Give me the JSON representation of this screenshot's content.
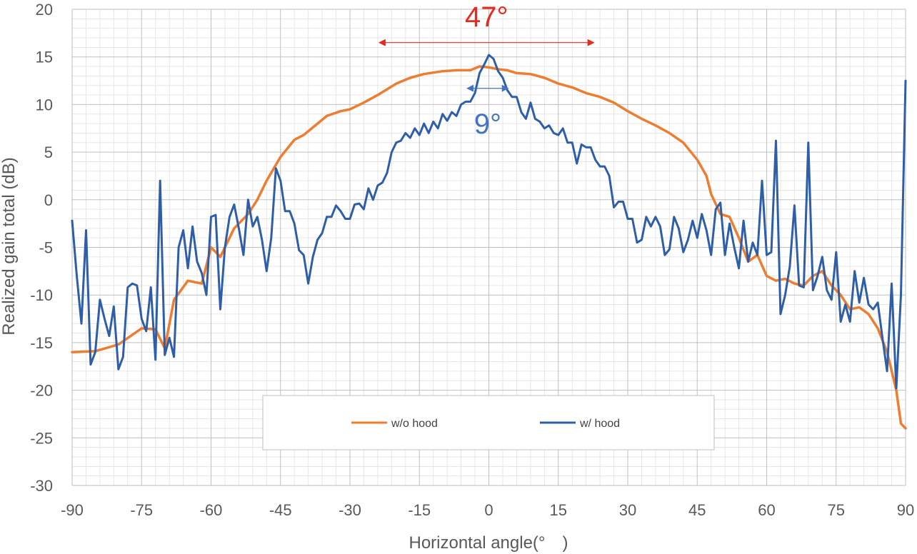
{
  "chart_data": {
    "type": "line",
    "title": "",
    "xlabel": "Horizontal angle(°　)",
    "ylabel": "Realized gain total (dB)",
    "xlim": [
      -90,
      90
    ],
    "ylim": [
      -30,
      20
    ],
    "xticks": [
      -90,
      -75,
      -60,
      -45,
      -30,
      -15,
      0,
      15,
      30,
      45,
      60,
      75,
      90
    ],
    "yticks": [
      -30,
      -25,
      -20,
      -15,
      -10,
      -5,
      0,
      5,
      10,
      15,
      20
    ],
    "xtick_labels": [
      "-90",
      "-75",
      "-60",
      "-45",
      "-30",
      "-15",
      "0",
      "15",
      "30",
      "45",
      "60",
      "75",
      "90"
    ],
    "ytick_labels": [
      "-30",
      "-25",
      "-20",
      "-15",
      "-10",
      "-5",
      "0",
      "5",
      "10",
      "15",
      "20"
    ],
    "grid": true,
    "legend_position": "bottom-center",
    "series": [
      {
        "name": "w/o hood",
        "color": "#ed7d31",
        "x": [
          -90,
          -85,
          -80,
          -75,
          -72,
          -70,
          -68,
          -65,
          -62,
          -60,
          -58,
          -55,
          -52,
          -50,
          -48,
          -45,
          -42,
          -40,
          -37,
          -35,
          -32,
          -30,
          -27,
          -24,
          -20,
          -17,
          -14,
          -10,
          -7,
          -4,
          -2,
          0,
          2,
          4,
          6,
          9,
          12,
          15,
          18,
          21,
          24,
          27,
          30,
          33,
          36,
          39,
          42,
          45,
          47,
          48,
          50,
          52,
          54,
          56,
          58,
          60,
          62,
          64,
          66,
          68,
          70,
          72,
          74,
          76,
          78,
          80,
          82,
          84,
          86,
          88,
          89,
          90
        ],
        "values": [
          -16,
          -15.9,
          -15.2,
          -13.5,
          -13.6,
          -15.6,
          -10.5,
          -8.5,
          -8.8,
          -5,
          -6,
          -3,
          -1.5,
          0,
          2,
          4.5,
          6.3,
          6.8,
          8,
          8.8,
          9.3,
          9.5,
          10.2,
          11,
          12.2,
          12.8,
          13.2,
          13.5,
          13.6,
          13.6,
          14,
          13.9,
          13.7,
          13.6,
          13.3,
          13.2,
          12.8,
          12.2,
          11.8,
          11.2,
          10.8,
          10.2,
          9.3,
          8.5,
          7.8,
          7,
          6,
          4.2,
          2.5,
          0.6,
          -1.5,
          -1.8,
          -4,
          -6.5,
          -5.8,
          -8,
          -8.5,
          -8.3,
          -8.8,
          -9,
          -8,
          -7.5,
          -9,
          -10,
          -11.5,
          -11.3,
          -12,
          -13.5,
          -16,
          -20,
          -23.5,
          -24
        ]
      },
      {
        "name": "w/ hood",
        "color": "#2e5ea8",
        "x": [
          -90,
          -89,
          -88,
          -87,
          -86,
          -85,
          -84,
          -83,
          -82,
          -81,
          -80,
          -79,
          -78,
          -77,
          -76,
          -75,
          -74,
          -73,
          -72,
          -71,
          -70,
          -69,
          -68,
          -67,
          -66,
          -65,
          -64,
          -63,
          -62,
          -61,
          -60,
          -59,
          -58,
          -57,
          -56,
          -55,
          -54,
          -53,
          -52,
          -51,
          -50,
          -49,
          -48,
          -47,
          -46,
          -45,
          -44,
          -43,
          -42,
          -41,
          -40,
          -39,
          -38,
          -37,
          -36,
          -35,
          -34,
          -33,
          -32,
          -31,
          -30,
          -29,
          -28,
          -27,
          -26,
          -25,
          -24,
          -23,
          -22,
          -21,
          -20,
          -19,
          -18,
          -17,
          -16,
          -15,
          -14,
          -13,
          -12,
          -11,
          -10,
          -9,
          -8,
          -7,
          -6,
          -5,
          -4,
          -3,
          -2,
          -1,
          0,
          1,
          2,
          3,
          4,
          5,
          6,
          7,
          8,
          9,
          10,
          11,
          12,
          13,
          14,
          15,
          16,
          17,
          18,
          19,
          20,
          21,
          22,
          23,
          24,
          25,
          26,
          27,
          28,
          29,
          30,
          31,
          32,
          33,
          34,
          35,
          36,
          37,
          38,
          39,
          40,
          41,
          42,
          43,
          44,
          45,
          46,
          47,
          48,
          49,
          50,
          51,
          52,
          53,
          54,
          55,
          56,
          57,
          58,
          59,
          60,
          61,
          62,
          63,
          64,
          65,
          66,
          67,
          68,
          69,
          70,
          71,
          72,
          73,
          74,
          75,
          76,
          77,
          78,
          79,
          80,
          81,
          82,
          83,
          84,
          85,
          86,
          87,
          88,
          89,
          90
        ],
        "values": [
          -2.2,
          -8,
          -13,
          -3.2,
          -17.3,
          -16,
          -10.5,
          -12.5,
          -14.3,
          -11.2,
          -17.8,
          -16.5,
          -9.2,
          -8.8,
          -9,
          -12.5,
          -13.8,
          -9.2,
          -16.8,
          2,
          -16.3,
          -14.5,
          -16.5,
          -5,
          -3.2,
          -7.2,
          -2.8,
          -6.5,
          -7.7,
          -10,
          -1.8,
          -1.6,
          -11.5,
          -5,
          -1.8,
          -0.5,
          -3,
          -5.8,
          0,
          -2.8,
          -1.8,
          -4.2,
          -7.5,
          -4,
          3.3,
          2,
          -1.2,
          -1.2,
          -2.5,
          -5.3,
          -5.8,
          -8.8,
          -6,
          -4.2,
          -3.5,
          -1.8,
          -1.8,
          -0.6,
          -1.2,
          -2,
          -2,
          -0.5,
          -0.4,
          -1,
          1.2,
          0,
          1.5,
          1.8,
          2.8,
          5,
          6,
          6.2,
          7,
          6.5,
          7.5,
          6.8,
          8,
          7,
          8.2,
          7.5,
          9,
          8.3,
          9.2,
          8.8,
          10,
          10.3,
          10.3,
          11.2,
          13.3,
          14.2,
          15.2,
          14.8,
          13.5,
          12.8,
          11.5,
          10.8,
          10.8,
          9.2,
          8.5,
          10.2,
          8.5,
          8.2,
          7.5,
          7.8,
          7,
          6.8,
          7.5,
          6,
          6,
          3.8,
          5.8,
          5.5,
          5.5,
          4.2,
          3.5,
          3.5,
          2.5,
          -0.8,
          -0.2,
          -0.2,
          -2,
          -2,
          -4.5,
          -4.2,
          -1.8,
          -2.8,
          -1.8,
          -2.8,
          -5.8,
          -5.2,
          -1.8,
          -3,
          -5.5,
          -4.2,
          -2.2,
          -4,
          -1.5,
          -3.2,
          -5.8,
          -1,
          -0.3,
          -5.8,
          -2.5,
          -5,
          -7.2,
          -2.2,
          -6.5,
          -4.5,
          -5.8,
          2,
          -5.8,
          -5.5,
          6.2,
          -12,
          -10,
          -7,
          -0.6,
          -9,
          -9.2,
          6,
          -9.5,
          -8,
          -6,
          -9.5,
          -10.5,
          -5.5,
          -12.8,
          -11,
          -12.8,
          -7.5,
          -10.8,
          -8.2,
          -11,
          -11.5,
          -10.8,
          -14.5,
          -18,
          -8.8,
          -19.8,
          -10,
          12.5
        ]
      }
    ],
    "annotations": [
      {
        "text": "47°",
        "color": "#e8291e",
        "arrow_from_x": -24,
        "arrow_to_x": 23,
        "arrow_y": 16.5
      },
      {
        "text": "9°",
        "color": "#4472c4",
        "arrow_from_x": -5,
        "arrow_to_x": 4.5,
        "arrow_y": 11.7
      }
    ]
  }
}
